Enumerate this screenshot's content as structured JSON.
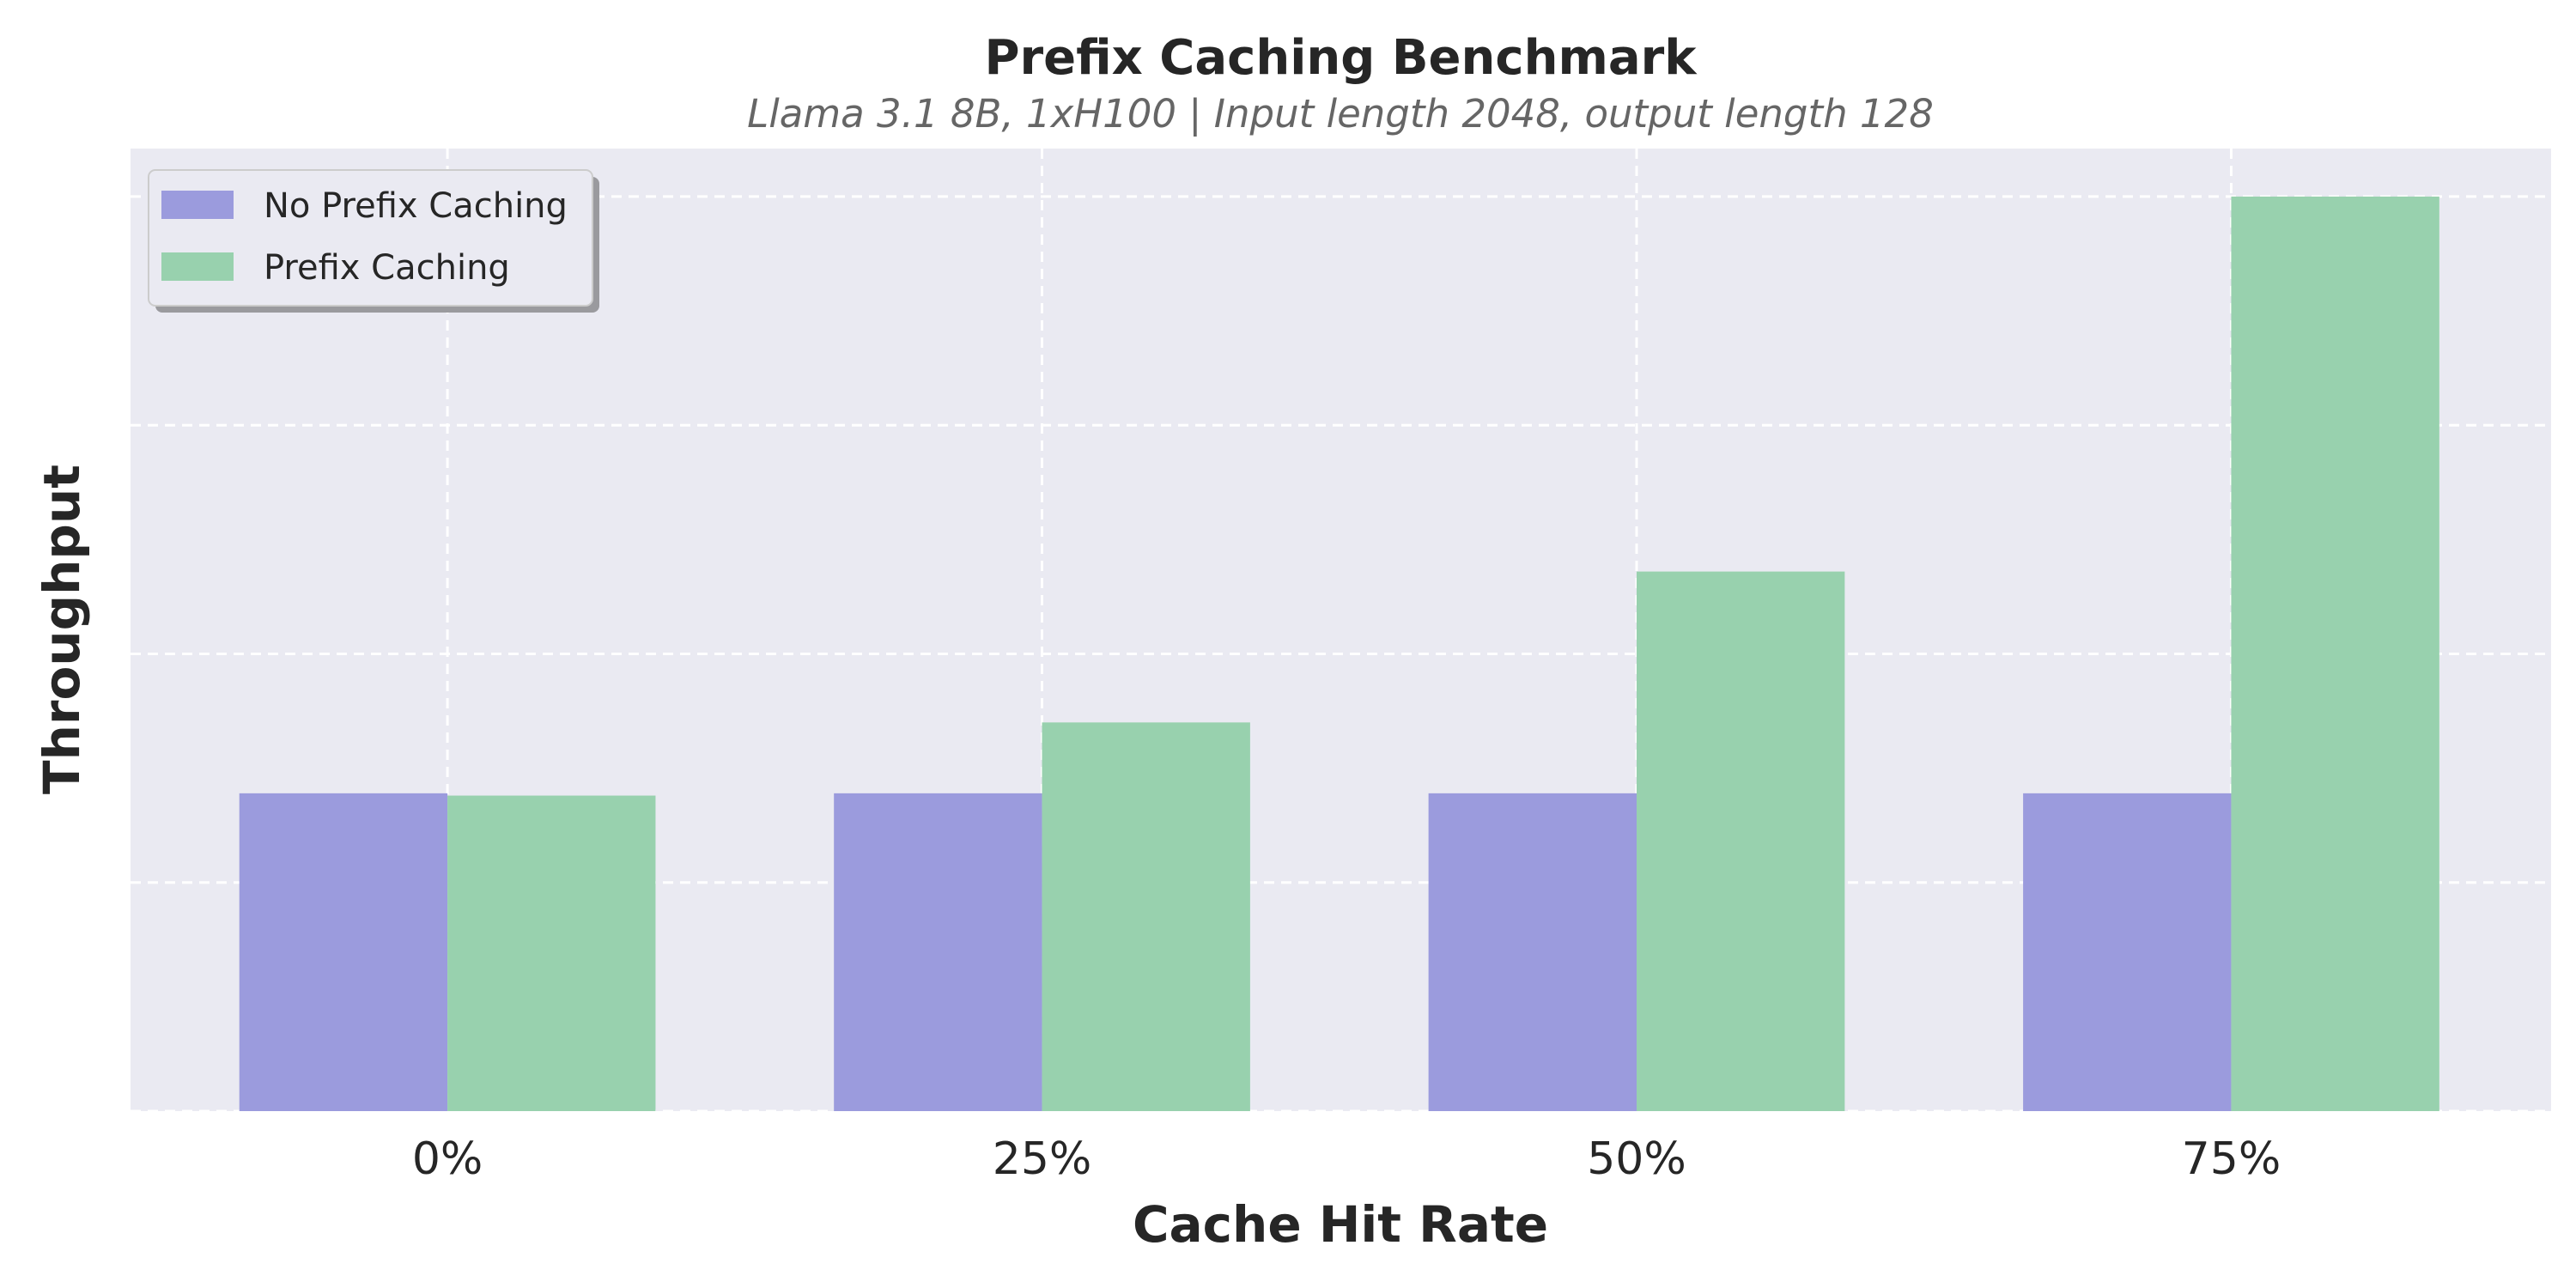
{
  "chart_data": {
    "type": "bar",
    "title": "Prefix Caching Benchmark",
    "subtitle": "Llama 3.1 8B, 1xH100 | Input length 2048, output length 128",
    "xlabel": "Cache Hit Rate",
    "ylabel": "Throughput",
    "categories": [
      "0%",
      "25%",
      "50%",
      "75%"
    ],
    "series": [
      {
        "name": "No Prefix Caching",
        "color": "#9b9bdd",
        "values": [
          1.39,
          1.39,
          1.39,
          1.39
        ]
      },
      {
        "name": "Prefix Caching",
        "color": "#98d1ae",
        "values": [
          1.38,
          1.7,
          2.36,
          4.0
        ]
      }
    ],
    "ylim": [
      0,
      4.21
    ],
    "yticks": [
      0,
      1,
      2,
      3,
      4
    ],
    "ytick_labels_shown": false,
    "grid": true,
    "legend": "top-left",
    "background": "#eaeaf2"
  }
}
